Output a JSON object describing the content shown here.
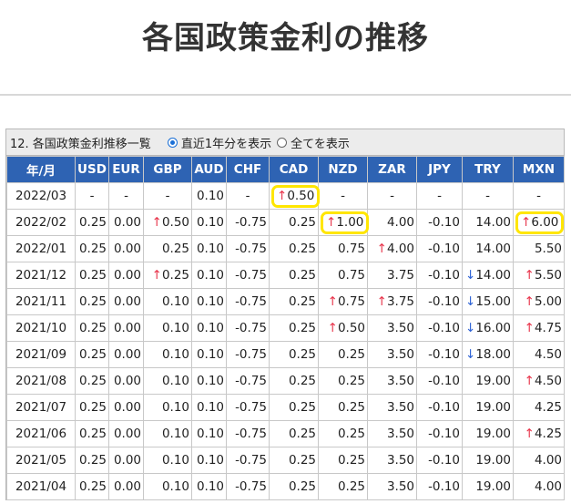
{
  "title": "各国政策金利の推移",
  "panel": {
    "caption": "12. 各国政策金利推移一覧",
    "radio_recent": "直近1年分を表示",
    "radio_all": "全てを表示"
  },
  "headers": [
    "年/月",
    "USD",
    "EUR",
    "GBP",
    "AUD",
    "CHF",
    "CAD",
    "NZD",
    "ZAR",
    "JPY",
    "TRY",
    "MXN"
  ],
  "rows": [
    [
      "2022/03",
      "-",
      "-",
      "-",
      "0.10",
      "-",
      "↑0.50",
      "-",
      "-",
      "-",
      "-",
      "-"
    ],
    [
      "2022/02",
      "0.25",
      "0.00",
      "↑0.50",
      "0.10",
      "-0.75",
      "0.25",
      "↑1.00",
      "4.00",
      "-0.10",
      "14.00",
      "↑6.00"
    ],
    [
      "2022/01",
      "0.25",
      "0.00",
      "0.25",
      "0.10",
      "-0.75",
      "0.25",
      "0.75",
      "↑4.00",
      "-0.10",
      "14.00",
      "5.50"
    ],
    [
      "2021/12",
      "0.25",
      "0.00",
      "↑0.25",
      "0.10",
      "-0.75",
      "0.25",
      "0.75",
      "3.75",
      "-0.10",
      "↓14.00",
      "↑5.50"
    ],
    [
      "2021/11",
      "0.25",
      "0.00",
      "0.10",
      "0.10",
      "-0.75",
      "0.25",
      "↑0.75",
      "↑3.75",
      "-0.10",
      "↓15.00",
      "↑5.00"
    ],
    [
      "2021/10",
      "0.25",
      "0.00",
      "0.10",
      "0.10",
      "-0.75",
      "0.25",
      "↑0.50",
      "3.50",
      "-0.10",
      "↓16.00",
      "↑4.75"
    ],
    [
      "2021/09",
      "0.25",
      "0.00",
      "0.10",
      "0.10",
      "-0.75",
      "0.25",
      "0.25",
      "3.50",
      "-0.10",
      "↓18.00",
      "4.50"
    ],
    [
      "2021/08",
      "0.25",
      "0.00",
      "0.10",
      "0.10",
      "-0.75",
      "0.25",
      "0.25",
      "3.50",
      "-0.10",
      "19.00",
      "↑4.50"
    ],
    [
      "2021/07",
      "0.25",
      "0.00",
      "0.10",
      "0.10",
      "-0.75",
      "0.25",
      "0.25",
      "3.50",
      "-0.10",
      "19.00",
      "4.25"
    ],
    [
      "2021/06",
      "0.25",
      "0.00",
      "0.10",
      "0.10",
      "-0.75",
      "0.25",
      "0.25",
      "3.50",
      "-0.10",
      "19.00",
      "↑4.25"
    ],
    [
      "2021/05",
      "0.25",
      "0.00",
      "0.10",
      "0.10",
      "-0.75",
      "0.25",
      "0.25",
      "3.50",
      "-0.10",
      "19.00",
      "4.00"
    ],
    [
      "2021/04",
      "0.25",
      "0.00",
      "0.10",
      "0.10",
      "-0.75",
      "0.25",
      "0.25",
      "3.50",
      "-0.10",
      "19.00",
      "4.00"
    ]
  ],
  "highlighted": [
    [
      0,
      6
    ],
    [
      1,
      7
    ],
    [
      1,
      11
    ]
  ],
  "colors": {
    "header": "#2e63b3",
    "up": "#e8334a",
    "down": "#2e63d6",
    "highlight": "#ffe600"
  }
}
